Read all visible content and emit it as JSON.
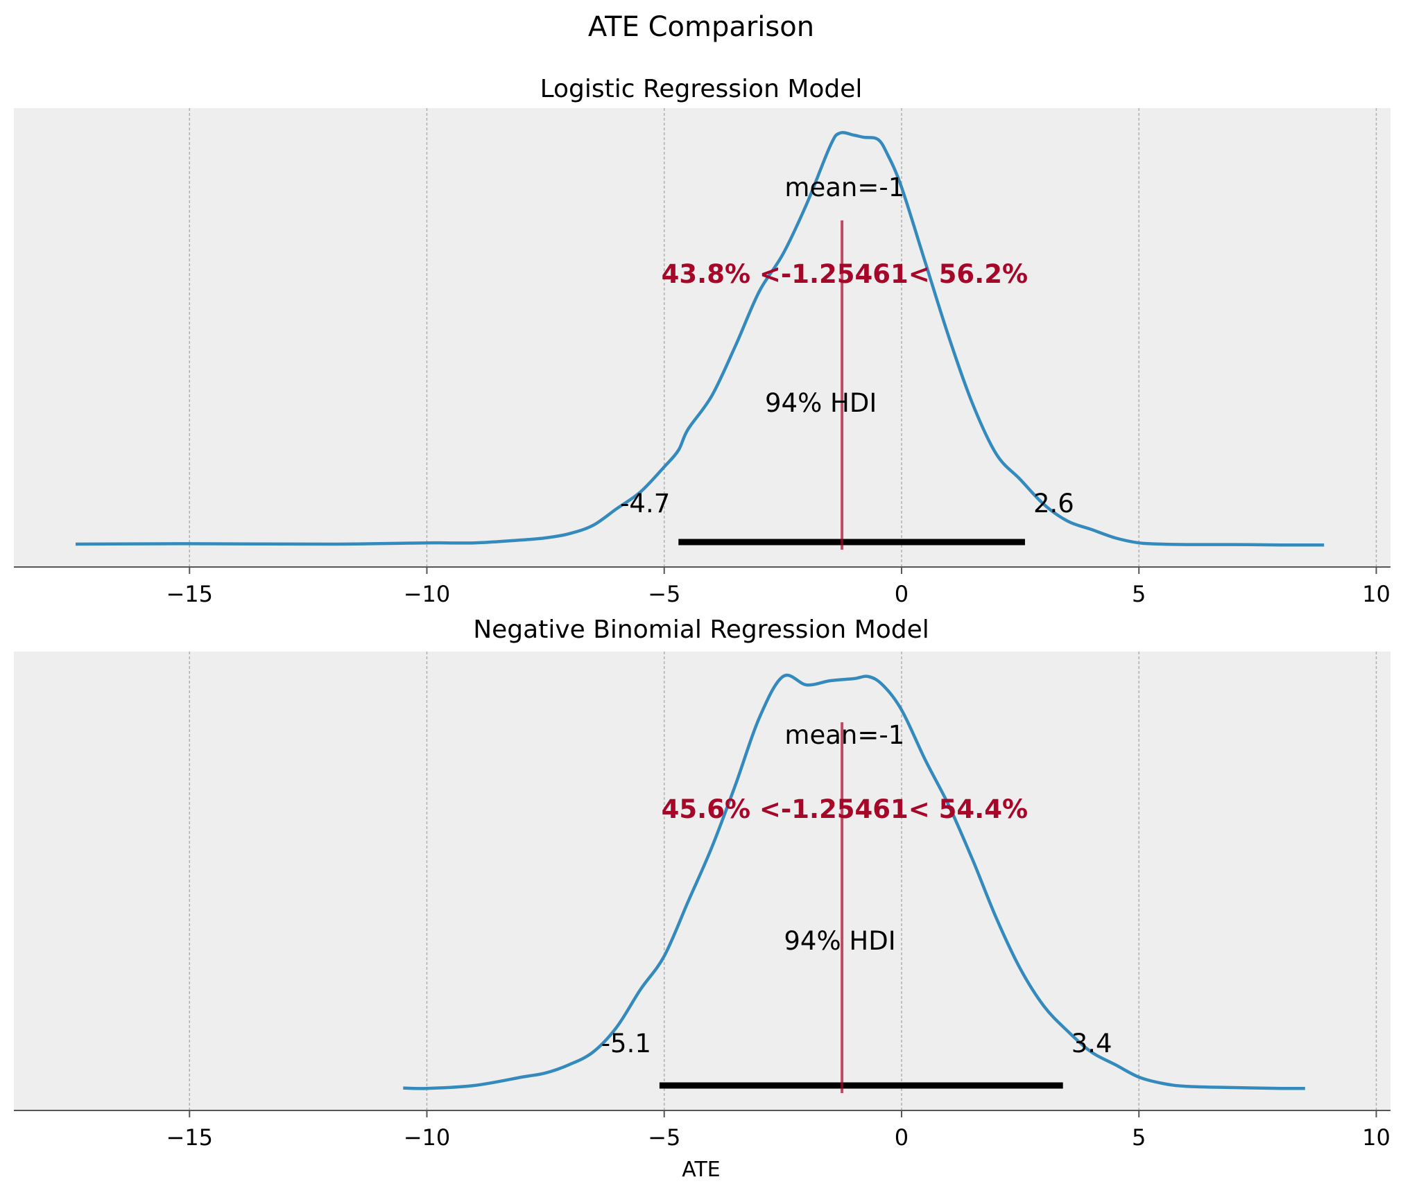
{
  "figure": {
    "title": "ATE Comparison",
    "xlabel": "ATE"
  },
  "colors": {
    "background": "#ffffff",
    "panel": "#eeeeee",
    "curve": "#348abd",
    "reference": "#a60628",
    "hdi": "#000000",
    "grid": "#b0b0b0",
    "axis": "#555555"
  },
  "chart_data": [
    {
      "type": "line",
      "title": "Logistic Regression Model",
      "xlim": [
        -18.7,
        10.3
      ],
      "xticks": [
        -15,
        -10,
        -5,
        0,
        5,
        10
      ],
      "xtick_labels": [
        "−15",
        "−10",
        "−5",
        "0",
        "5",
        "10"
      ],
      "grid": "vertical",
      "mean_label": "mean=-1",
      "reference_value": -1.25461,
      "reference_label": "43.8% <-1.25461< 56.2%",
      "hdi": {
        "label": "94% HDI",
        "low": -4.7,
        "high": 2.6,
        "low_label": "-4.7",
        "high_label": "2.6"
      },
      "density": {
        "x": [
          -17.4,
          -15,
          -12,
          -10,
          -9,
          -8,
          -7.5,
          -7,
          -6.5,
          -6,
          -5.5,
          -5,
          -4.7,
          -4.5,
          -4,
          -3.5,
          -3,
          -2.5,
          -2,
          -1.5,
          -1.3,
          -1.0,
          -0.8,
          -0.5,
          -0.3,
          0,
          0.5,
          1,
          1.5,
          2,
          2.5,
          3,
          3.5,
          4,
          4.5,
          5,
          5.5,
          6,
          7,
          8,
          8.9
        ],
        "y": [
          0.005,
          0.006,
          0.005,
          0.008,
          0.008,
          0.015,
          0.02,
          0.03,
          0.05,
          0.09,
          0.13,
          0.19,
          0.23,
          0.28,
          0.36,
          0.48,
          0.61,
          0.7,
          0.82,
          0.96,
          0.99,
          0.985,
          0.98,
          0.975,
          0.94,
          0.86,
          0.68,
          0.5,
          0.34,
          0.22,
          0.16,
          0.1,
          0.06,
          0.04,
          0.02,
          0.008,
          0.005,
          0.004,
          0.004,
          0.003,
          0.003
        ]
      }
    },
    {
      "type": "line",
      "title": "Negative Binomial Regression Model",
      "xlim": [
        -18.7,
        10.3
      ],
      "xticks": [
        -15,
        -10,
        -5,
        0,
        5,
        10
      ],
      "xtick_labels": [
        "−15",
        "−10",
        "−5",
        "0",
        "5",
        "10"
      ],
      "grid": "vertical",
      "mean_label": "mean=-1",
      "reference_value": -1.25461,
      "reference_label": "45.6% <-1.25461< 54.4%",
      "hdi": {
        "label": "94% HDI",
        "low": -5.1,
        "high": 3.4,
        "low_label": "-5.1",
        "high_label": "3.4"
      },
      "density": {
        "x": [
          -10.5,
          -10,
          -9,
          -8,
          -7.5,
          -7,
          -6.5,
          -6,
          -5.5,
          -5,
          -4.5,
          -4,
          -3.5,
          -3,
          -2.5,
          -2,
          -1.5,
          -1,
          -0.7,
          -0.4,
          0,
          0.5,
          1,
          1.5,
          2,
          2.5,
          3,
          3.5,
          4,
          4.5,
          5,
          5.5,
          6,
          7,
          8,
          8.5
        ],
        "y": [
          0.004,
          0.003,
          0.01,
          0.03,
          0.04,
          0.06,
          0.09,
          0.15,
          0.24,
          0.32,
          0.45,
          0.58,
          0.73,
          0.89,
          0.99,
          0.97,
          0.98,
          0.985,
          0.99,
          0.97,
          0.91,
          0.79,
          0.68,
          0.55,
          0.41,
          0.29,
          0.2,
          0.14,
          0.09,
          0.06,
          0.03,
          0.015,
          0.008,
          0.005,
          0.003,
          0.003
        ]
      }
    }
  ]
}
